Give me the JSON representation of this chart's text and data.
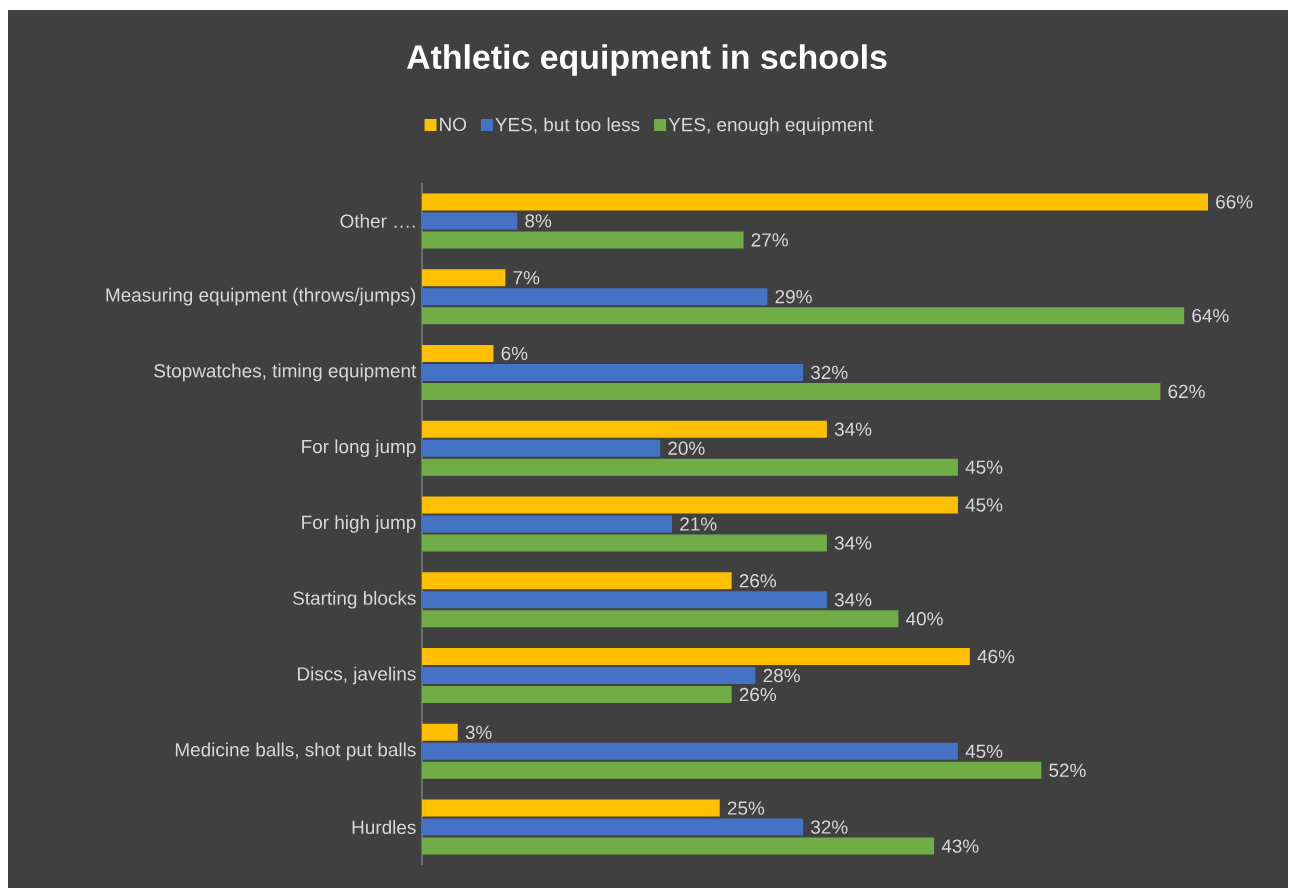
{
  "chart_data": {
    "type": "bar",
    "orientation": "horizontal",
    "title": "Athletic equipment in schools",
    "legend": "top",
    "categories": [
      "Other ….",
      "Measuring equipment (throws/jumps)",
      "Stopwatches, timing equipment",
      "For long jump",
      "For high jump",
      "Starting blocks",
      "Discs, javelins",
      "Medicine balls, shot put balls",
      "Hurdles"
    ],
    "series": [
      {
        "name": "NO",
        "color": "#ffc000",
        "values": [
          66,
          7,
          6,
          34,
          45,
          26,
          46,
          3,
          25
        ],
        "value_labels": [
          "66%",
          "7%",
          "6%",
          "34%",
          "45%",
          "26%",
          "46%",
          "3%",
          "25%"
        ]
      },
      {
        "name": "YES, but too less",
        "color": "#4472c4",
        "values": [
          8,
          29,
          32,
          20,
          21,
          34,
          28,
          45,
          32
        ],
        "value_labels": [
          "8%",
          "29%",
          "32%",
          "20%",
          "21%",
          "34%",
          "28%",
          "45%",
          "32%"
        ]
      },
      {
        "name": "YES, enough equipment",
        "color": "#70ad47",
        "values": [
          27,
          64,
          62,
          45,
          34,
          40,
          26,
          52,
          43
        ],
        "value_labels": [
          "27%",
          "64%",
          "62%",
          "45%",
          "34%",
          "40%",
          "26%",
          "52%",
          "43%"
        ]
      }
    ]
  }
}
